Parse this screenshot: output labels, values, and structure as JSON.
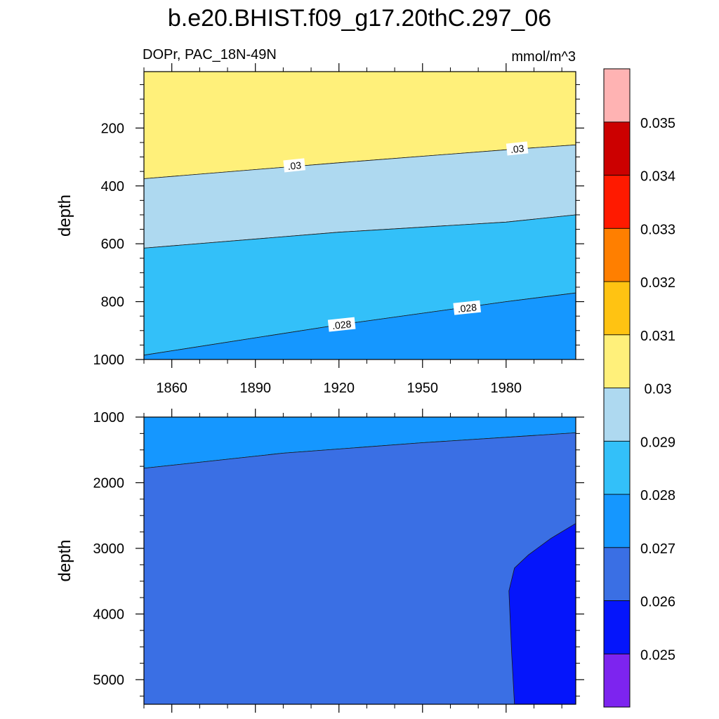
{
  "title": "b.e20.BHIST.f09_g17.20thC.297_06",
  "left_subtitle": "DOPr, PAC_18N-49N",
  "right_subtitle": "mmol/m^3",
  "colors": {
    "background": "#ffffff",
    "axis": "#000000"
  },
  "chart_data": [
    {
      "type": "heatmap",
      "panel": "upper",
      "ylabel": "depth",
      "xlabel": "",
      "x_ticks": [
        "1860",
        "1890",
        "1920",
        "1950",
        "1980"
      ],
      "x_tick_values": [
        1860,
        1890,
        1920,
        1950,
        1980
      ],
      "y_ticks": [
        "200",
        "400",
        "600",
        "800",
        "1000"
      ],
      "y_tick_values": [
        200,
        400,
        600,
        800,
        1000
      ],
      "xlim": [
        1850,
        2005
      ],
      "ylim": [
        5,
        1000
      ],
      "y_inverted": true,
      "bands": [
        {
          "range": "0.030-0.031",
          "color": "#fff07a",
          "upper_edge": null,
          "lower_edge": [
            [
              1850,
              375
            ],
            [
              1920,
              320
            ],
            [
              1980,
              275
            ],
            [
              2005,
              258
            ]
          ]
        },
        {
          "range": "0.029-0.030",
          "color": "#aed9f0",
          "upper_edge": [
            [
              1850,
              375
            ],
            [
              1920,
              320
            ],
            [
              1980,
              275
            ],
            [
              2005,
              258
            ]
          ],
          "lower_edge": [
            [
              1850,
              615
            ],
            [
              1920,
              560
            ],
            [
              1980,
              525
            ],
            [
              2005,
              500
            ]
          ]
        },
        {
          "range": "0.028-0.029",
          "color": "#33c0f9",
          "upper_edge": [
            [
              1850,
              615
            ],
            [
              1920,
              560
            ],
            [
              1980,
              525
            ],
            [
              2005,
              500
            ]
          ],
          "lower_edge": [
            [
              1850,
              985
            ],
            [
              1920,
              880
            ],
            [
              1980,
              800
            ],
            [
              2005,
              770
            ]
          ]
        },
        {
          "range": "0.027-0.028",
          "color": "#1597ff",
          "upper_edge": [
            [
              1850,
              985
            ],
            [
              1920,
              880
            ],
            [
              1980,
              800
            ],
            [
              2005,
              770
            ]
          ],
          "lower_edge": null
        }
      ],
      "contour_labels": [
        {
          "text": ".03",
          "x": 1904,
          "y": 330
        },
        {
          "text": ".03",
          "x": 1984,
          "y": 272
        },
        {
          "text": ".028",
          "x": 1921,
          "y": 880
        },
        {
          "text": ".028",
          "x": 1966,
          "y": 822
        }
      ]
    },
    {
      "type": "heatmap",
      "panel": "lower",
      "ylabel": "depth",
      "xlabel": "",
      "x_tick_values": [
        1860,
        1890,
        1920,
        1950,
        1980
      ],
      "y_ticks": [
        "1000",
        "2000",
        "3000",
        "4000",
        "5000"
      ],
      "y_tick_values": [
        1000,
        2000,
        3000,
        4000,
        5000
      ],
      "xlim": [
        1850,
        2005
      ],
      "ylim": [
        1000,
        5375
      ],
      "y_inverted": true,
      "bands": [
        {
          "range": "0.027-0.028",
          "color": "#1597ff",
          "upper_edge": null,
          "lower_edge": [
            [
              1850,
              1780
            ],
            [
              1900,
              1550
            ],
            [
              1950,
              1390
            ],
            [
              2005,
              1240
            ]
          ]
        },
        {
          "range": "0.026-0.027",
          "color": "#3a6fe4",
          "upper_edge": [
            [
              1850,
              1780
            ],
            [
              1900,
              1550
            ],
            [
              1950,
              1390
            ],
            [
              2005,
              1240
            ]
          ],
          "lower_edge": null
        },
        {
          "range": "0.025-0.026",
          "color": "#0515fb",
          "region": [
            [
              1983,
              5375
            ],
            [
              1982,
              4600
            ],
            [
              1981,
              3650
            ],
            [
              1983,
              3300
            ],
            [
              1988,
              3100
            ],
            [
              1996,
              2850
            ],
            [
              2005,
              2620
            ],
            [
              2005,
              5375
            ]
          ]
        }
      ]
    }
  ],
  "colorbar": {
    "colors": [
      "#7d24ef",
      "#0515fb",
      "#3a6fe4",
      "#1597ff",
      "#33c0f9",
      "#aed9f0",
      "#fff07a",
      "#ffc312",
      "#ff7f00",
      "#ff1a00",
      "#cc0000",
      "#ffb3b3"
    ],
    "labels": [
      "0.025",
      "0.026",
      "0.027",
      "0.028",
      "0.029",
      "0.03",
      "0.031",
      "0.032",
      "0.033",
      "0.034",
      "0.035"
    ]
  }
}
